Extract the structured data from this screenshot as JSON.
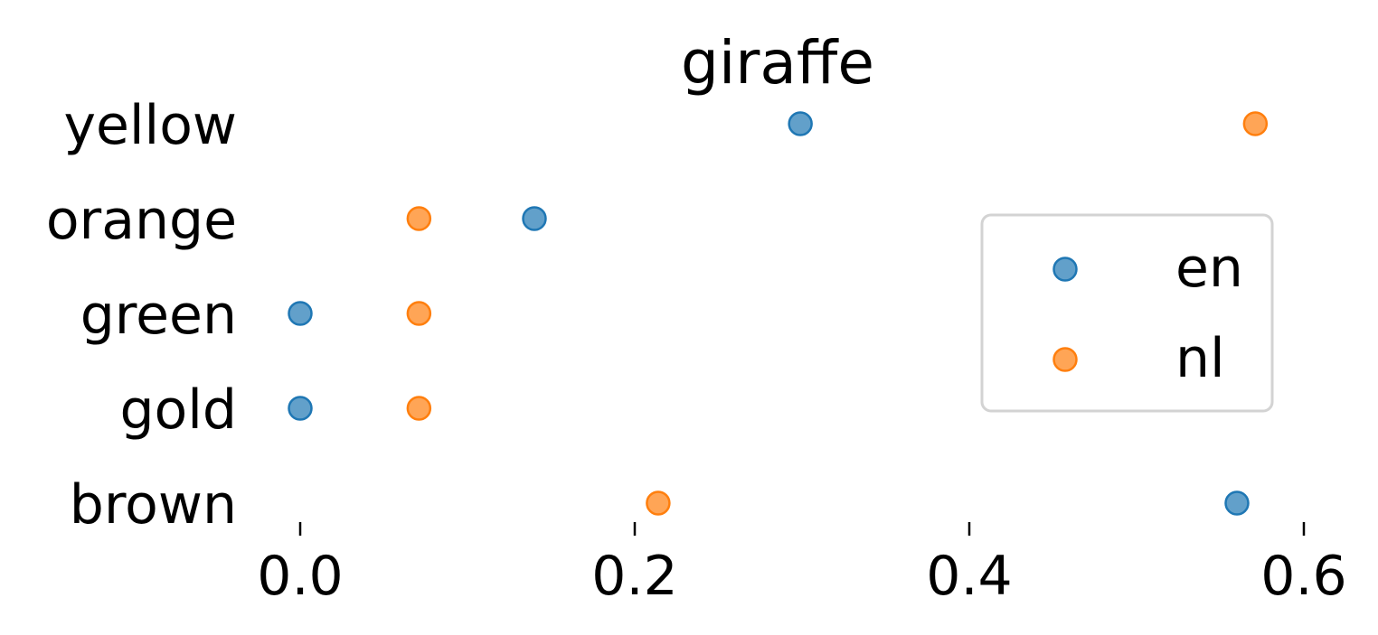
{
  "chart_data": {
    "type": "scatter",
    "title": "giraffe",
    "xlabel": "",
    "ylabel": "",
    "categories": [
      "yellow",
      "orange",
      "green",
      "gold",
      "brown"
    ],
    "xlim": [
      -0.015,
      0.62
    ],
    "xticks": [
      0.0,
      0.2,
      0.4,
      0.6
    ],
    "xtick_labels": [
      "0.0",
      "0.2",
      "0.4",
      "0.6"
    ],
    "grid": false,
    "legend_position": "right",
    "series": [
      {
        "name": "en",
        "color": "#1f77b4",
        "values": [
          0.299,
          0.14,
          0.0,
          0.0,
          0.56
        ]
      },
      {
        "name": "nl",
        "color": "#ff7f0e",
        "values": [
          0.571,
          0.071,
          0.071,
          0.071,
          0.214
        ]
      }
    ]
  }
}
